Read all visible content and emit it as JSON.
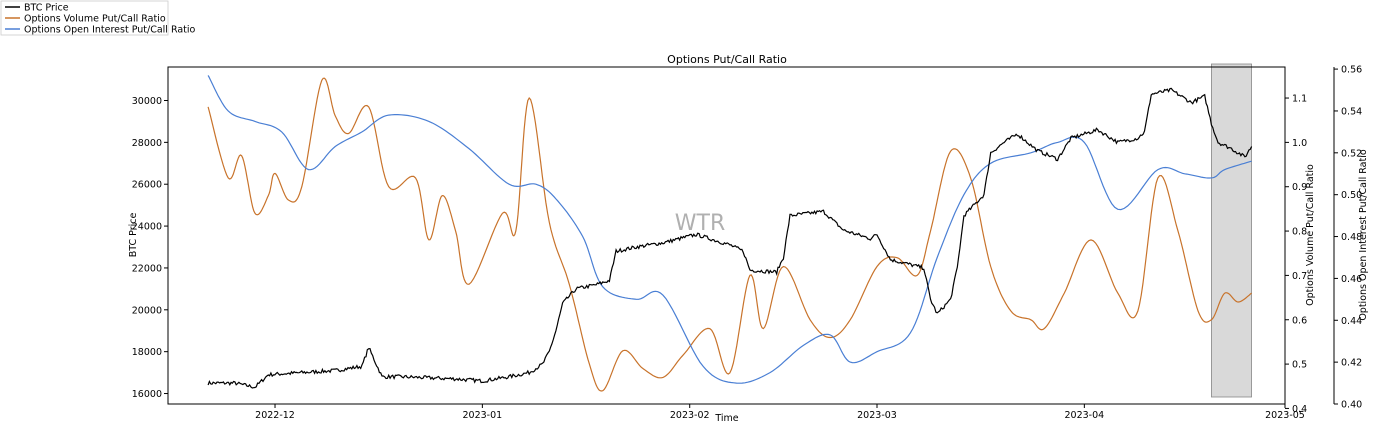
{
  "chart_data": {
    "type": "line",
    "title": "Options Put/Call Ratio",
    "xlabel": "Time",
    "watermark": "WTR",
    "x_range": [
      "2022-11-15",
      "2023-05-01"
    ],
    "x_ticks": [
      {
        "date": "2022-12-01",
        "label": "2022-12"
      },
      {
        "date": "2023-01-01",
        "label": "2023-01"
      },
      {
        "date": "2023-02-01",
        "label": "2023-02"
      },
      {
        "date": "2023-03-01",
        "label": "2023-03"
      },
      {
        "date": "2023-04-01",
        "label": "2023-04"
      },
      {
        "date": "2023-05-01",
        "label": "2023-05"
      }
    ],
    "legend_placement": "top-left",
    "highlight_region": {
      "start": "2023-04-20",
      "end": "2023-04-26",
      "color": "#d9d9d9"
    },
    "axes": {
      "btc": {
        "label": "BTC Price",
        "side": "left",
        "ylim": [
          15500,
          31600
        ],
        "ticks": [
          {
            "v": 16000,
            "t": "16000"
          },
          {
            "v": 18000,
            "t": "18000"
          },
          {
            "v": 20000,
            "t": "20000"
          },
          {
            "v": 22000,
            "t": "22000"
          },
          {
            "v": 24000,
            "t": "24000"
          },
          {
            "v": 26000,
            "t": "26000"
          },
          {
            "v": 28000,
            "t": "28000"
          },
          {
            "v": 30000,
            "t": "30000"
          }
        ]
      },
      "volume": {
        "label": "Options Volume Put/Call Ratio",
        "side": "right",
        "ylim": [
          0.41,
          1.17
        ],
        "ticks": [
          {
            "v": 0.4,
            "t": "0.4"
          },
          {
            "v": 0.5,
            "t": "0.5"
          },
          {
            "v": 0.6,
            "t": "0.6"
          },
          {
            "v": 0.7,
            "t": "0.7"
          },
          {
            "v": 0.8,
            "t": "0.8"
          },
          {
            "v": 0.9,
            "t": "0.9"
          },
          {
            "v": 1.0,
            "t": "1.0"
          },
          {
            "v": 1.1,
            "t": "1.1"
          }
        ]
      },
      "oi": {
        "label": "Options Open Interest Put/Call Ratio",
        "side": "right-outer",
        "ylim": [
          0.4,
          0.561
        ],
        "ticks": [
          {
            "v": 0.4,
            "t": "0.40"
          },
          {
            "v": 0.42,
            "t": "0.42"
          },
          {
            "v": 0.44,
            "t": "0.44"
          },
          {
            "v": 0.46,
            "t": "0.46"
          },
          {
            "v": 0.48,
            "t": "0.48"
          },
          {
            "v": 0.5,
            "t": "0.50"
          },
          {
            "v": 0.52,
            "t": "0.52"
          },
          {
            "v": 0.54,
            "t": "0.54"
          },
          {
            "v": 0.56,
            "t": "0.56"
          }
        ]
      }
    },
    "series": [
      {
        "name": "BTC Price",
        "axis": "btc",
        "color": "#000000",
        "jitter": 90,
        "points": [
          [
            "2022-11-21",
            16500
          ],
          [
            "2022-11-25",
            16500
          ],
          [
            "2022-11-28",
            16300
          ],
          [
            "2022-11-30",
            16900
          ],
          [
            "2022-12-05",
            17000
          ],
          [
            "2022-12-10",
            17100
          ],
          [
            "2022-12-14",
            17300
          ],
          [
            "2022-12-15",
            18200
          ],
          [
            "2022-12-17",
            16800
          ],
          [
            "2022-12-20",
            16800
          ],
          [
            "2022-12-28",
            16700
          ],
          [
            "2023-01-01",
            16600
          ],
          [
            "2023-01-05",
            16800
          ],
          [
            "2023-01-08",
            17000
          ],
          [
            "2023-01-10",
            17400
          ],
          [
            "2023-01-11",
            18000
          ],
          [
            "2023-01-12",
            19000
          ],
          [
            "2023-01-13",
            20300
          ],
          [
            "2023-01-15",
            21000
          ],
          [
            "2023-01-18",
            21200
          ],
          [
            "2023-01-20",
            21400
          ],
          [
            "2023-01-21",
            22800
          ],
          [
            "2023-01-24",
            23000
          ],
          [
            "2023-01-28",
            23200
          ],
          [
            "2023-02-02",
            23600
          ],
          [
            "2023-02-04",
            23400
          ],
          [
            "2023-02-07",
            23100
          ],
          [
            "2023-02-09",
            22800
          ],
          [
            "2023-02-10",
            21900
          ],
          [
            "2023-02-14",
            21800
          ],
          [
            "2023-02-15",
            22500
          ],
          [
            "2023-02-16",
            24500
          ],
          [
            "2023-02-21",
            24700
          ],
          [
            "2023-02-24",
            23800
          ],
          [
            "2023-02-28",
            23400
          ],
          [
            "2023-03-01",
            23600
          ],
          [
            "2023-03-03",
            22400
          ],
          [
            "2023-03-08",
            22000
          ],
          [
            "2023-03-09",
            20500
          ],
          [
            "2023-03-10",
            19800
          ],
          [
            "2023-03-12",
            20500
          ],
          [
            "2023-03-13",
            22000
          ],
          [
            "2023-03-14",
            24500
          ],
          [
            "2023-03-17",
            25500
          ],
          [
            "2023-03-18",
            27500
          ],
          [
            "2023-03-20",
            28000
          ],
          [
            "2023-03-22",
            28400
          ],
          [
            "2023-03-25",
            27600
          ],
          [
            "2023-03-28",
            27200
          ],
          [
            "2023-03-30",
            28200
          ],
          [
            "2023-04-03",
            28600
          ],
          [
            "2023-04-06",
            28000
          ],
          [
            "2023-04-09",
            28200
          ],
          [
            "2023-04-10",
            28500
          ],
          [
            "2023-04-11",
            30300
          ],
          [
            "2023-04-14",
            30500
          ],
          [
            "2023-04-17",
            29900
          ],
          [
            "2023-04-19",
            30200
          ],
          [
            "2023-04-20",
            28900
          ],
          [
            "2023-04-21",
            28000
          ],
          [
            "2023-04-23",
            27700
          ],
          [
            "2023-04-25",
            27300
          ],
          [
            "2023-04-26",
            27800
          ]
        ]
      },
      {
        "name": "Options Volume Put/Call Ratio",
        "axis": "volume",
        "color": "#c8732b",
        "jitter": 0,
        "points": [
          [
            "2022-11-21",
            1.08
          ],
          [
            "2022-11-24",
            0.92
          ],
          [
            "2022-11-26",
            0.97
          ],
          [
            "2022-11-28",
            0.84
          ],
          [
            "2022-11-30",
            0.88
          ],
          [
            "2022-12-01",
            0.93
          ],
          [
            "2022-12-03",
            0.87
          ],
          [
            "2022-12-05",
            0.9
          ],
          [
            "2022-12-08",
            1.14
          ],
          [
            "2022-12-10",
            1.06
          ],
          [
            "2022-12-12",
            1.02
          ],
          [
            "2022-12-15",
            1.08
          ],
          [
            "2022-12-18",
            0.9
          ],
          [
            "2022-12-22",
            0.92
          ],
          [
            "2022-12-24",
            0.78
          ],
          [
            "2022-12-26",
            0.88
          ],
          [
            "2022-12-28",
            0.8
          ],
          [
            "2022-12-30",
            0.68
          ],
          [
            "2023-01-04",
            0.84
          ],
          [
            "2023-01-06",
            0.8
          ],
          [
            "2023-01-08",
            1.1
          ],
          [
            "2023-01-11",
            0.82
          ],
          [
            "2023-01-14",
            0.68
          ],
          [
            "2023-01-17",
            0.5
          ],
          [
            "2023-01-19",
            0.44
          ],
          [
            "2023-01-22",
            0.53
          ],
          [
            "2023-01-25",
            0.49
          ],
          [
            "2023-01-28",
            0.47
          ],
          [
            "2023-01-31",
            0.52
          ],
          [
            "2023-02-04",
            0.58
          ],
          [
            "2023-02-07",
            0.48
          ],
          [
            "2023-02-10",
            0.7
          ],
          [
            "2023-02-12",
            0.58
          ],
          [
            "2023-02-15",
            0.72
          ],
          [
            "2023-02-19",
            0.6
          ],
          [
            "2023-02-22",
            0.56
          ],
          [
            "2023-02-25",
            0.6
          ],
          [
            "2023-03-01",
            0.72
          ],
          [
            "2023-03-04",
            0.74
          ],
          [
            "2023-03-07",
            0.7
          ],
          [
            "2023-03-09",
            0.8
          ],
          [
            "2023-03-12",
            0.98
          ],
          [
            "2023-03-15",
            0.92
          ],
          [
            "2023-03-18",
            0.72
          ],
          [
            "2023-03-21",
            0.62
          ],
          [
            "2023-03-24",
            0.6
          ],
          [
            "2023-03-26",
            0.58
          ],
          [
            "2023-03-29",
            0.66
          ],
          [
            "2023-04-02",
            0.78
          ],
          [
            "2023-04-06",
            0.66
          ],
          [
            "2023-04-09",
            0.62
          ],
          [
            "2023-04-12",
            0.92
          ],
          [
            "2023-04-15",
            0.8
          ],
          [
            "2023-04-18",
            0.62
          ],
          [
            "2023-04-20",
            0.6
          ],
          [
            "2023-04-22",
            0.66
          ],
          [
            "2023-04-24",
            0.64
          ],
          [
            "2023-04-26",
            0.66
          ]
        ]
      },
      {
        "name": "Options Open Interest Put/Call Ratio",
        "axis": "oi",
        "color": "#4a7fd4",
        "jitter": 0,
        "points": [
          [
            "2022-11-21",
            0.557
          ],
          [
            "2022-11-24",
            0.54
          ],
          [
            "2022-11-28",
            0.535
          ],
          [
            "2022-12-02",
            0.53
          ],
          [
            "2022-12-06",
            0.512
          ],
          [
            "2022-12-10",
            0.523
          ],
          [
            "2022-12-14",
            0.53
          ],
          [
            "2022-12-18",
            0.538
          ],
          [
            "2022-12-24",
            0.535
          ],
          [
            "2022-12-30",
            0.522
          ],
          [
            "2023-01-05",
            0.505
          ],
          [
            "2023-01-09",
            0.505
          ],
          [
            "2023-01-12",
            0.498
          ],
          [
            "2023-01-16",
            0.48
          ],
          [
            "2023-01-19",
            0.456
          ],
          [
            "2023-01-24",
            0.45
          ],
          [
            "2023-01-28",
            0.452
          ],
          [
            "2023-02-03",
            0.418
          ],
          [
            "2023-02-08",
            0.41
          ],
          [
            "2023-02-13",
            0.415
          ],
          [
            "2023-02-18",
            0.428
          ],
          [
            "2023-02-22",
            0.433
          ],
          [
            "2023-02-25",
            0.42
          ],
          [
            "2023-03-01",
            0.425
          ],
          [
            "2023-03-06",
            0.434
          ],
          [
            "2023-03-10",
            0.47
          ],
          [
            "2023-03-14",
            0.5
          ],
          [
            "2023-03-18",
            0.515
          ],
          [
            "2023-03-24",
            0.52
          ],
          [
            "2023-03-28",
            0.525
          ],
          [
            "2023-04-01",
            0.525
          ],
          [
            "2023-04-06",
            0.493
          ],
          [
            "2023-04-12",
            0.512
          ],
          [
            "2023-04-16",
            0.51
          ],
          [
            "2023-04-20",
            0.508
          ],
          [
            "2023-04-22",
            0.512
          ],
          [
            "2023-04-26",
            0.516
          ]
        ]
      }
    ]
  }
}
